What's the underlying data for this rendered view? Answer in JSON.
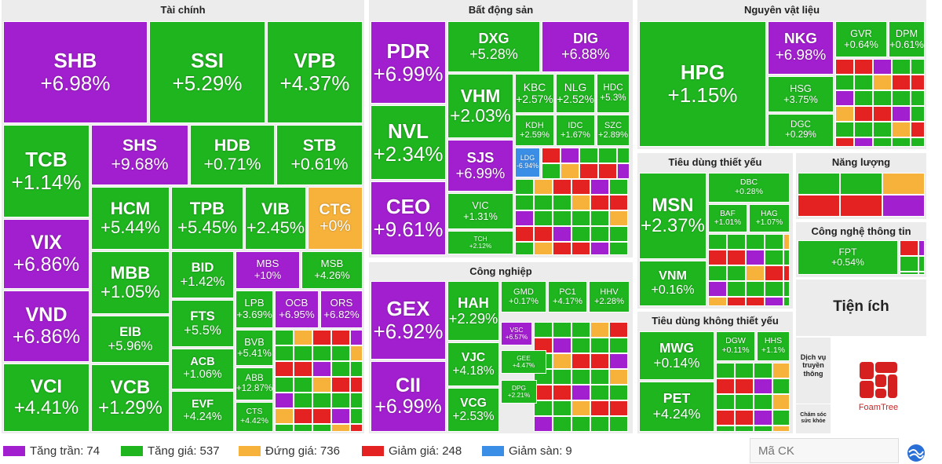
{
  "sectors": [
    {
      "title": "Tài chính",
      "tiles": [
        {
          "ticker": "SHB",
          "change": "+6.98%",
          "color": "#a21fcf"
        },
        {
          "ticker": "SSI",
          "change": "+5.29%",
          "color": "#1fb51f"
        },
        {
          "ticker": "VPB",
          "change": "+4.37%",
          "color": "#1fb51f"
        },
        {
          "ticker": "TCB",
          "change": "+1.14%",
          "color": "#1fb51f"
        },
        {
          "ticker": "SHS",
          "change": "+9.68%",
          "color": "#a21fcf"
        },
        {
          "ticker": "HDB",
          "change": "+0.71%",
          "color": "#1fb51f"
        },
        {
          "ticker": "STB",
          "change": "+0.61%",
          "color": "#1fb51f"
        },
        {
          "ticker": "VIX",
          "change": "+6.86%",
          "color": "#a21fcf"
        },
        {
          "ticker": "HCM",
          "change": "+5.44%",
          "color": "#1fb51f"
        },
        {
          "ticker": "TPB",
          "change": "+5.45%",
          "color": "#1fb51f"
        },
        {
          "ticker": "VIB",
          "change": "+2.45%",
          "color": "#1fb51f"
        },
        {
          "ticker": "CTG",
          "change": "+0%",
          "color": "#f7b23b"
        },
        {
          "ticker": "VND",
          "change": "+6.86%",
          "color": "#a21fcf"
        },
        {
          "ticker": "MBB",
          "change": "+1.05%",
          "color": "#1fb51f"
        },
        {
          "ticker": "BID",
          "change": "+1.42%",
          "color": "#1fb51f"
        },
        {
          "ticker": "MBS",
          "change": "+10%",
          "color": "#a21fcf"
        },
        {
          "ticker": "MSB",
          "change": "+4.26%",
          "color": "#1fb51f"
        },
        {
          "ticker": "EIB",
          "change": "+5.96%",
          "color": "#1fb51f"
        },
        {
          "ticker": "FTS",
          "change": "+5.5%",
          "color": "#1fb51f"
        },
        {
          "ticker": "LPB",
          "change": "+3.69%",
          "color": "#1fb51f"
        },
        {
          "ticker": "OCB",
          "change": "+6.95%",
          "color": "#a21fcf"
        },
        {
          "ticker": "ORS",
          "change": "+6.82%",
          "color": "#a21fcf"
        },
        {
          "ticker": "VCI",
          "change": "+4.41%",
          "color": "#1fb51f"
        },
        {
          "ticker": "VCB",
          "change": "+1.29%",
          "color": "#1fb51f"
        },
        {
          "ticker": "ACB",
          "change": "+1.06%",
          "color": "#1fb51f"
        },
        {
          "ticker": "EVF",
          "change": "+4.24%",
          "color": "#1fb51f"
        },
        {
          "ticker": "BVB",
          "change": "+5.41%",
          "color": "#1fb51f"
        },
        {
          "ticker": "ABB",
          "change": "+12.87%",
          "color": "#1fb51f"
        },
        {
          "ticker": "CTS",
          "change": "+4.42%",
          "color": "#1fb51f"
        }
      ]
    },
    {
      "title": "Bất động sản",
      "tiles": [
        {
          "ticker": "PDR",
          "change": "+6.99%",
          "color": "#a21fcf"
        },
        {
          "ticker": "DXG",
          "change": "+5.28%",
          "color": "#1fb51f"
        },
        {
          "ticker": "DIG",
          "change": "+6.88%",
          "color": "#a21fcf"
        },
        {
          "ticker": "VHM",
          "change": "+2.03%",
          "color": "#1fb51f"
        },
        {
          "ticker": "KBC",
          "change": "+2.57%",
          "color": "#1fb51f"
        },
        {
          "ticker": "NLG",
          "change": "+2.52%",
          "color": "#1fb51f"
        },
        {
          "ticker": "HDC",
          "change": "+5.3%",
          "color": "#1fb51f"
        },
        {
          "ticker": "KDH",
          "change": "+2.59%",
          "color": "#1fb51f"
        },
        {
          "ticker": "IDC",
          "change": "+1.67%",
          "color": "#1fb51f"
        },
        {
          "ticker": "SZC",
          "change": "+2.89%",
          "color": "#1fb51f"
        },
        {
          "ticker": "NVL",
          "change": "+2.34%",
          "color": "#1fb51f"
        },
        {
          "ticker": "SJS",
          "change": "+6.99%",
          "color": "#a21fcf"
        },
        {
          "ticker": "LDG",
          "change": "-6.94%",
          "color": "#3a8ee6"
        },
        {
          "ticker": "CEO",
          "change": "+9.61%",
          "color": "#a21fcf"
        },
        {
          "ticker": "VIC",
          "change": "+1.31%",
          "color": "#1fb51f"
        },
        {
          "ticker": "TCH",
          "change": "+2.12%",
          "color": "#1fb51f"
        }
      ]
    },
    {
      "title": "Nguyên vật liệu",
      "tiles": [
        {
          "ticker": "HPG",
          "change": "+1.15%",
          "color": "#1fb51f"
        },
        {
          "ticker": "NKG",
          "change": "+6.98%",
          "color": "#a21fcf"
        },
        {
          "ticker": "GVR",
          "change": "+0.64%",
          "color": "#1fb51f"
        },
        {
          "ticker": "DPM",
          "change": "+0.61%",
          "color": "#1fb51f"
        },
        {
          "ticker": "HSG",
          "change": "+3.75%",
          "color": "#1fb51f"
        },
        {
          "ticker": "DGC",
          "change": "+0.29%",
          "color": "#1fb51f"
        }
      ]
    },
    {
      "title": "Tiêu dùng thiết yếu",
      "tiles": [
        {
          "ticker": "MSN",
          "change": "+2.37%",
          "color": "#1fb51f"
        },
        {
          "ticker": "DBC",
          "change": "+0.28%",
          "color": "#1fb51f"
        },
        {
          "ticker": "BAF",
          "change": "+1.01%",
          "color": "#1fb51f"
        },
        {
          "ticker": "HAG",
          "change": "+1.07%",
          "color": "#1fb51f"
        },
        {
          "ticker": "VNM",
          "change": "+0.16%",
          "color": "#1fb51f"
        }
      ]
    },
    {
      "title": "Năng lượng",
      "tiles": []
    },
    {
      "title": "Công nghệ thông tin",
      "tiles": [
        {
          "ticker": "FPT",
          "change": "+0.54%",
          "color": "#1fb51f"
        }
      ]
    },
    {
      "title": "Công nghiệp",
      "tiles": [
        {
          "ticker": "GEX",
          "change": "+6.92%",
          "color": "#a21fcf"
        },
        {
          "ticker": "HAH",
          "change": "+2.29%",
          "color": "#1fb51f"
        },
        {
          "ticker": "GMD",
          "change": "+0.17%",
          "color": "#1fb51f"
        },
        {
          "ticker": "PC1",
          "change": "+4.17%",
          "color": "#1fb51f"
        },
        {
          "ticker": "HHV",
          "change": "+2.28%",
          "color": "#1fb51f"
        },
        {
          "ticker": "VSC",
          "change": "+6.57%",
          "color": "#a21fcf"
        },
        {
          "ticker": "CII",
          "change": "+6.99%",
          "color": "#a21fcf"
        },
        {
          "ticker": "VJC",
          "change": "+4.18%",
          "color": "#1fb51f"
        },
        {
          "ticker": "VCG",
          "change": "+2.53%",
          "color": "#1fb51f"
        },
        {
          "ticker": "GEE",
          "change": "+4.47%",
          "color": "#1fb51f"
        },
        {
          "ticker": "DPG",
          "change": "+2.21%",
          "color": "#1fb51f"
        }
      ]
    },
    {
      "title": "Tiêu dùng không thiết yếu",
      "tiles": [
        {
          "ticker": "MWG",
          "change": "+0.14%",
          "color": "#1fb51f"
        },
        {
          "ticker": "DGW",
          "change": "+0.11%",
          "color": "#1fb51f"
        },
        {
          "ticker": "HHS",
          "change": "+1.1%",
          "color": "#1fb51f"
        },
        {
          "ticker": "PET",
          "change": "+4.24%",
          "color": "#1fb51f"
        }
      ]
    },
    {
      "title": "Tiện ích",
      "tiles": []
    },
    {
      "title": "Dịch vụ truyền thông",
      "tiles": []
    },
    {
      "title": "Chăm sóc sức khỏe",
      "tiles": []
    }
  ],
  "logo": "FoamTree",
  "legend": [
    {
      "label": "Tăng trần:",
      "count": 74,
      "color": "#a21fcf"
    },
    {
      "label": "Tăng giá:",
      "count": 537,
      "color": "#1fb51f"
    },
    {
      "label": "Đứng giá:",
      "count": 736,
      "color": "#f7b23b"
    },
    {
      "label": "Giảm giá:",
      "count": 248,
      "color": "#e52222"
    },
    {
      "label": "Giảm sàn:",
      "count": 9,
      "color": "#3a8ee6"
    }
  ],
  "search_placeholder": "Mã CK"
}
